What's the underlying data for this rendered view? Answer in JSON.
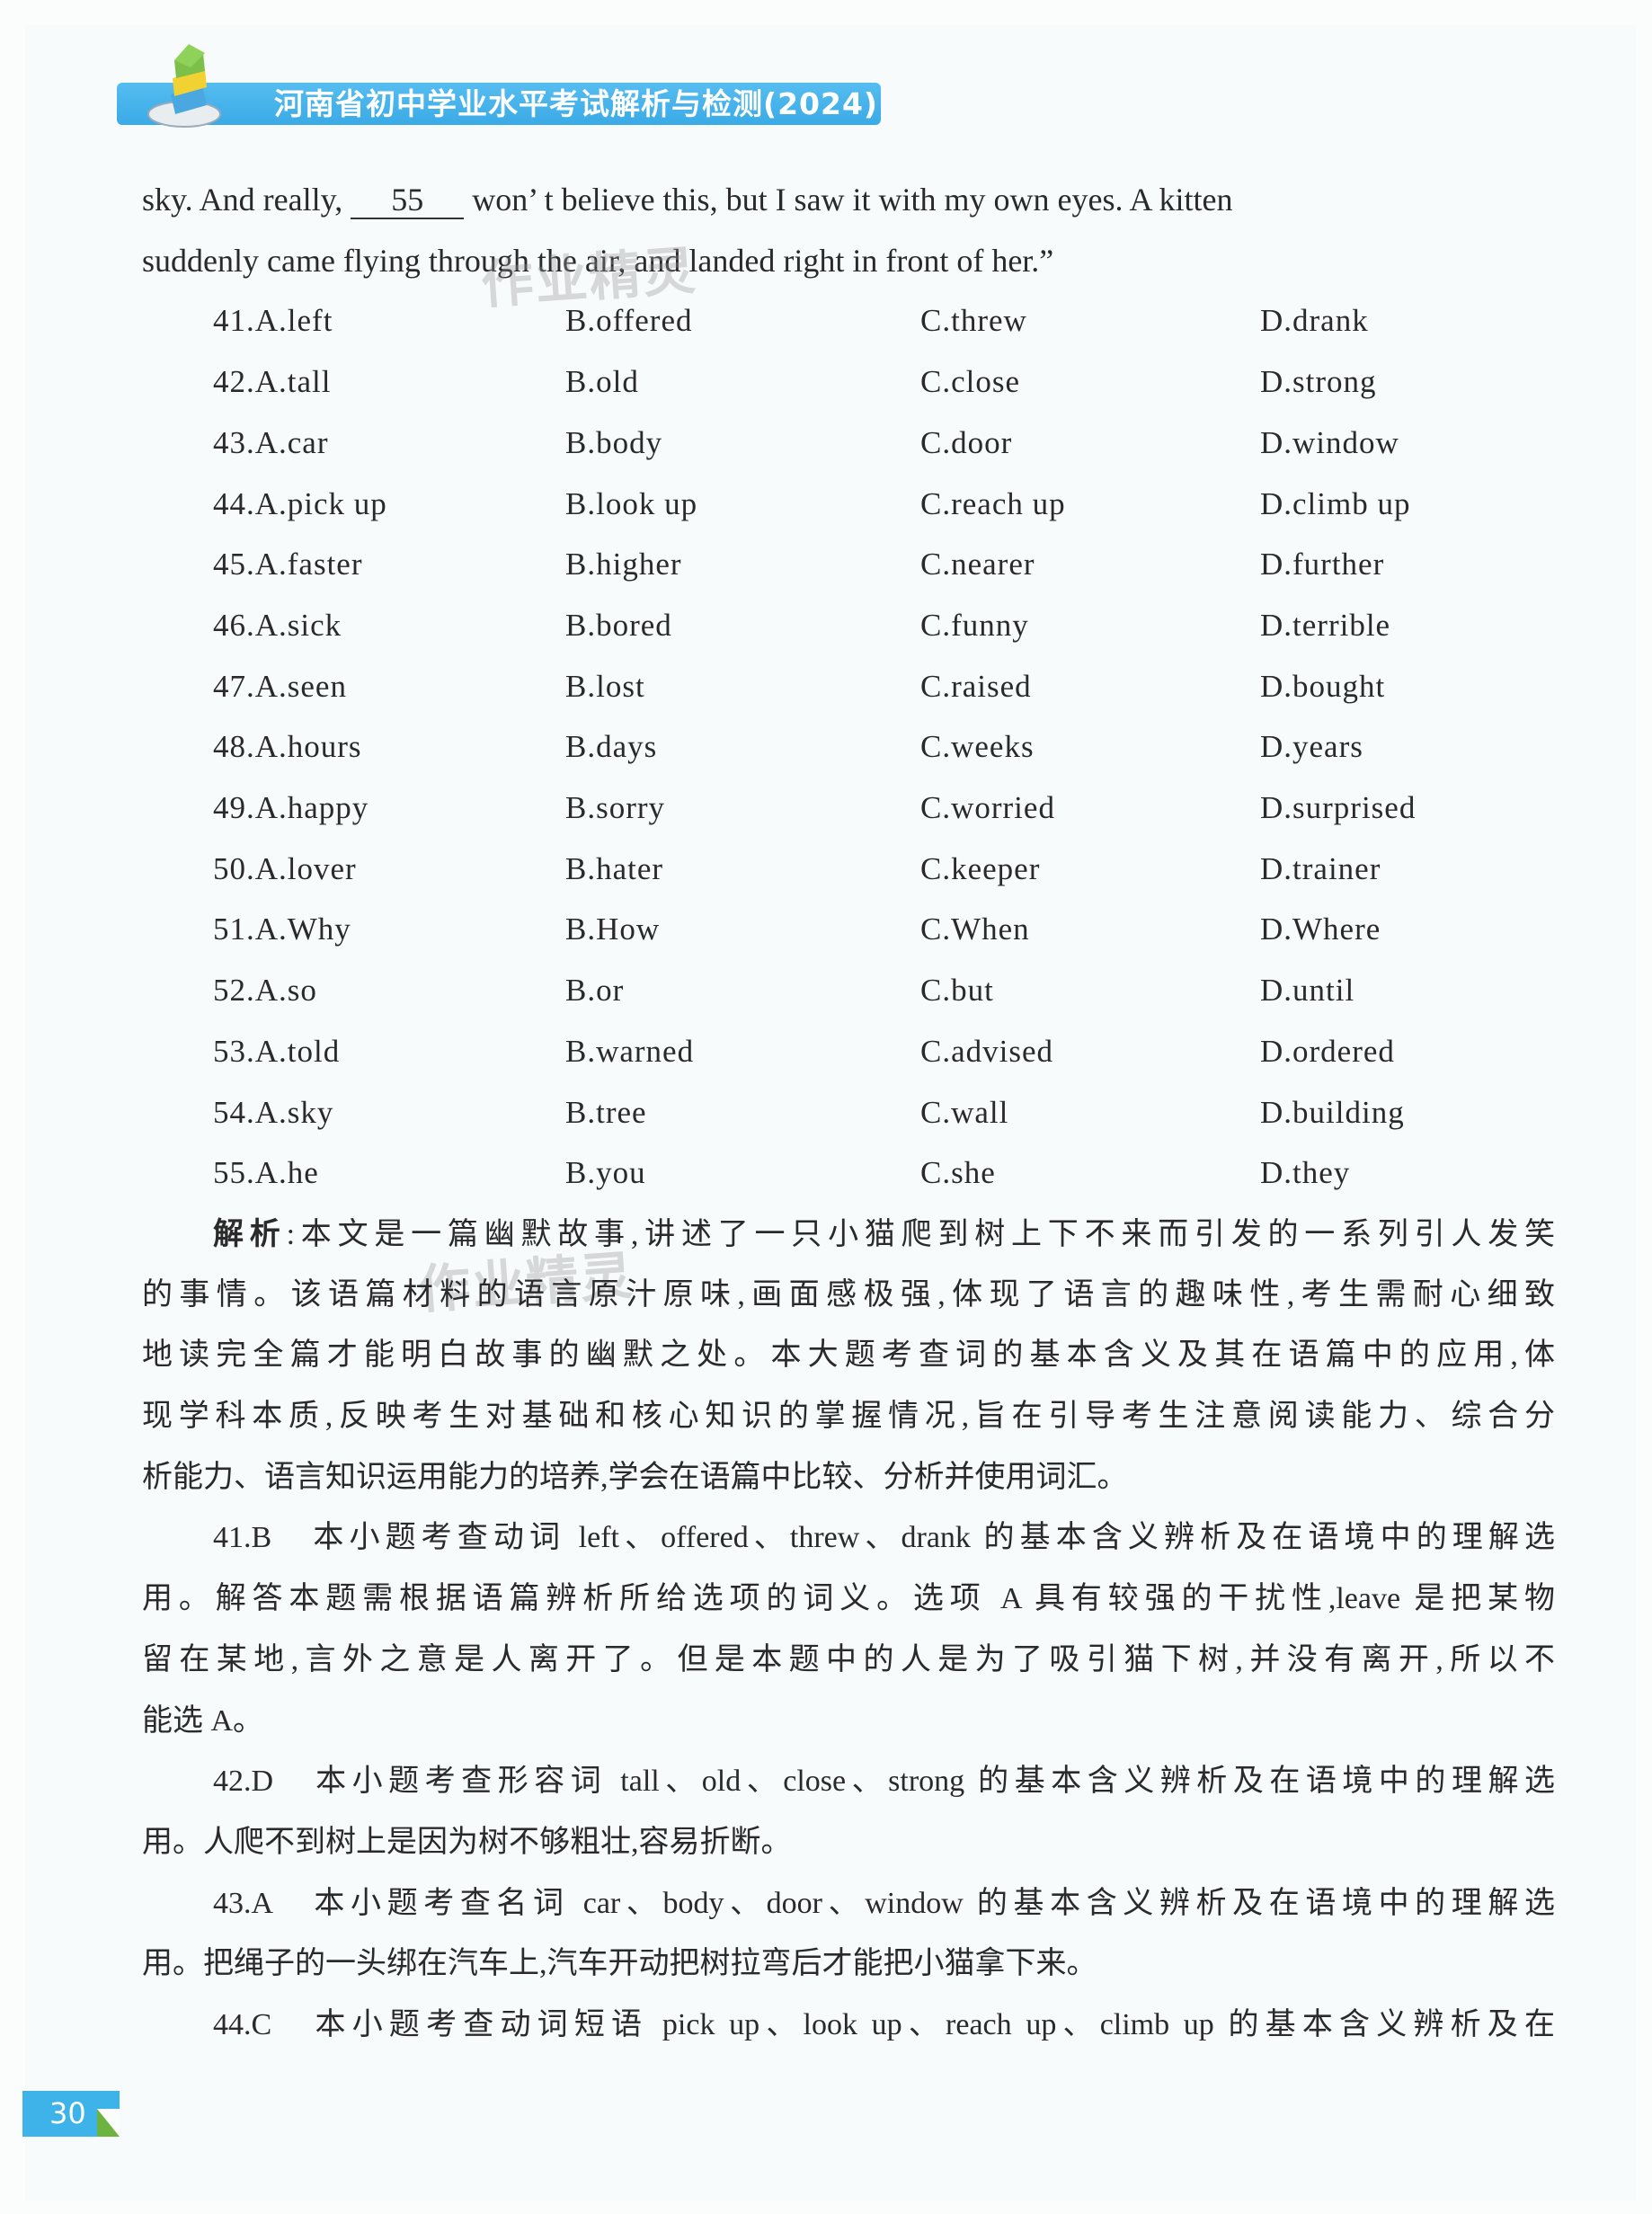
{
  "header": {
    "title": "河南省初中学业水平考试解析与检测(2024)"
  },
  "watermark": "作业精灵",
  "passage": {
    "line1_before": "sky. And really,",
    "blank_number": "55",
    "line1_after": "won’ t believe this, but I saw it with my own eyes. A kitten",
    "line2": "suddenly came flying through the air, and landed right in front of her.”"
  },
  "options": [
    {
      "a": "41.A.left",
      "b": "B.offered",
      "c": "C.threw",
      "d": "D.drank"
    },
    {
      "a": "42.A.tall",
      "b": "B.old",
      "c": "C.close",
      "d": "D.strong"
    },
    {
      "a": "43.A.car",
      "b": "B.body",
      "c": "C.door",
      "d": "D.window"
    },
    {
      "a": "44.A.pick up",
      "b": "B.look up",
      "c": "C.reach up",
      "d": "D.climb up"
    },
    {
      "a": "45.A.faster",
      "b": "B.higher",
      "c": "C.nearer",
      "d": "D.further"
    },
    {
      "a": "46.A.sick",
      "b": "B.bored",
      "c": "C.funny",
      "d": "D.terrible"
    },
    {
      "a": "47.A.seen",
      "b": "B.lost",
      "c": "C.raised",
      "d": "D.bought"
    },
    {
      "a": "48.A.hours",
      "b": "B.days",
      "c": "C.weeks",
      "d": "D.years"
    },
    {
      "a": "49.A.happy",
      "b": "B.sorry",
      "c": "C.worried",
      "d": "D.surprised"
    },
    {
      "a": "50.A.lover",
      "b": "B.hater",
      "c": "C.keeper",
      "d": "D.trainer"
    },
    {
      "a": "51.A.Why",
      "b": "B.How",
      "c": "C.When",
      "d": "D.Where"
    },
    {
      "a": "52.A.so",
      "b": "B.or",
      "c": "C.but",
      "d": "D.until"
    },
    {
      "a": "53.A.told",
      "b": "B.warned",
      "c": "C.advised",
      "d": "D.ordered"
    },
    {
      "a": "54.A.sky",
      "b": "B.tree",
      "c": "C.wall",
      "d": "D.building"
    },
    {
      "a": "55.A.he",
      "b": "B.you",
      "c": "C.she",
      "d": "D.they"
    }
  ],
  "analysis": {
    "label": "解析",
    "lines": [
      ":本文是一篇幽默故事,讲述了一只小猫爬到树上下不来而引发的一系列引人发笑",
      "的事情。该语篇材料的语言原汁原味,画面感极强,体现了语言的趣味性,考生需耐心细致",
      "地读完全篇才能明白故事的幽默之处。本大题考查词的基本含义及其在语篇中的应用,体",
      "现学科本质,反映考生对基础和核心知识的掌握情况,旨在引导考生注意阅读能力、综合分",
      "析能力、语言知识运用能力的培养,学会在语篇中比较、分析并使用词汇。"
    ]
  },
  "explanations": [
    {
      "lines": [
        "41.B　本小题考查动词 left、offered、threw、drank 的基本含义辨析及在语境中的理解选",
        "用。解答本题需根据语篇辨析所给选项的词义。选项 A 具有较强的干扰性,leave 是把某物",
        "留在某地,言外之意是人离开了。但是本题中的人是为了吸引猫下树,并没有离开,所以不",
        "能选 A。"
      ]
    },
    {
      "lines": [
        "42.D　本小题考查形容词 tall、old、close、strong 的基本含义辨析及在语境中的理解选",
        "用。人爬不到树上是因为树不够粗壮,容易折断。"
      ]
    },
    {
      "lines": [
        "43.A　本小题考查名词 car、body、door、window 的基本含义辨析及在语境中的理解选",
        "用。把绳子的一头绑在汽车上,汽车开动把树拉弯后才能把小猫拿下来。"
      ]
    },
    {
      "lines": [
        "44.C　本小题考查动词短语 pick up、look up、reach up、climb up 的基本含义辨析及在"
      ]
    }
  ],
  "page_number": "30",
  "colors": {
    "header_blue": "#3aaae6",
    "page_tab_blue": "#3db3ea",
    "tab_fold_green": "#6cb33f"
  }
}
